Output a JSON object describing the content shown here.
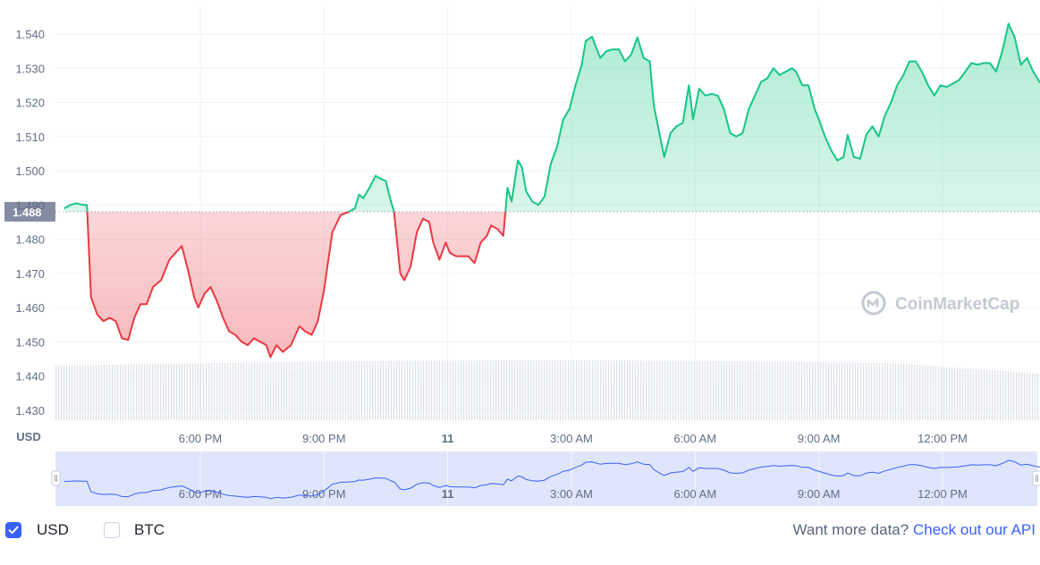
{
  "chart_data": {
    "type": "line",
    "currency_label": "USD",
    "reference_price": 1.488,
    "reference_label": "1.488",
    "y_ticks": [
      "1.540",
      "1.530",
      "1.520",
      "1.510",
      "1.500",
      "1.490",
      "1.480",
      "1.470",
      "1.460",
      "1.450",
      "1.440",
      "1.430"
    ],
    "ylim": [
      1.427,
      1.543
    ],
    "x_ticks": [
      {
        "label": "6:00 PM",
        "h": 18,
        "bold": false
      },
      {
        "label": "9:00 PM",
        "h": 21,
        "bold": false
      },
      {
        "label": "11",
        "h": 24,
        "bold": true
      },
      {
        "label": "3:00 AM",
        "h": 27,
        "bold": false
      },
      {
        "label": "6:00 AM",
        "h": 30,
        "bold": false
      },
      {
        "label": "9:00 AM",
        "h": 33,
        "bold": false
      },
      {
        "label": "12:00 PM",
        "h": 36,
        "bold": false
      }
    ],
    "x_axis": "hours since midnight of the 10th",
    "xlim": [
      14.7,
      38.55
    ],
    "grid": true,
    "above_color": "#16c784",
    "below_color": "#ea3943",
    "series": [
      {
        "points": [
          [
            14.7,
            1.489
          ],
          [
            14.85,
            1.49
          ],
          [
            15.0,
            1.4905
          ],
          [
            15.15,
            1.49
          ],
          [
            15.25,
            1.49
          ],
          [
            15.35,
            1.463
          ],
          [
            15.5,
            1.458
          ],
          [
            15.65,
            1.456
          ],
          [
            15.8,
            1.457
          ],
          [
            15.95,
            1.456
          ],
          [
            16.1,
            1.451
          ],
          [
            16.25,
            1.4505
          ],
          [
            16.4,
            1.457
          ],
          [
            16.55,
            1.461
          ],
          [
            16.7,
            1.461
          ],
          [
            16.85,
            1.466
          ],
          [
            17.05,
            1.468
          ],
          [
            17.25,
            1.474
          ],
          [
            17.4,
            1.476
          ],
          [
            17.55,
            1.478
          ],
          [
            17.7,
            1.471
          ],
          [
            17.85,
            1.463
          ],
          [
            17.95,
            1.46
          ],
          [
            18.1,
            1.464
          ],
          [
            18.25,
            1.466
          ],
          [
            18.4,
            1.462
          ],
          [
            18.55,
            1.457
          ],
          [
            18.7,
            1.453
          ],
          [
            18.85,
            1.452
          ],
          [
            19.0,
            1.45
          ],
          [
            19.15,
            1.449
          ],
          [
            19.3,
            1.451
          ],
          [
            19.45,
            1.45
          ],
          [
            19.6,
            1.449
          ],
          [
            19.7,
            1.4455
          ],
          [
            19.85,
            1.449
          ],
          [
            20.0,
            1.447
          ],
          [
            20.2,
            1.449
          ],
          [
            20.4,
            1.4545
          ],
          [
            20.55,
            1.453
          ],
          [
            20.7,
            1.452
          ],
          [
            20.85,
            1.456
          ],
          [
            21.0,
            1.465
          ],
          [
            21.2,
            1.482
          ],
          [
            21.4,
            1.487
          ],
          [
            21.6,
            1.488
          ],
          [
            21.75,
            1.489
          ],
          [
            21.85,
            1.493
          ],
          [
            21.95,
            1.492
          ],
          [
            22.1,
            1.495
          ],
          [
            22.25,
            1.4985
          ],
          [
            22.4,
            1.4975
          ],
          [
            22.5,
            1.497
          ],
          [
            22.6,
            1.492
          ],
          [
            22.7,
            1.488
          ],
          [
            22.85,
            1.47
          ],
          [
            22.95,
            1.468
          ],
          [
            23.1,
            1.472
          ],
          [
            23.25,
            1.482
          ],
          [
            23.4,
            1.486
          ],
          [
            23.55,
            1.485
          ],
          [
            23.65,
            1.479
          ],
          [
            23.8,
            1.474
          ],
          [
            23.95,
            1.479
          ],
          [
            24.05,
            1.476
          ],
          [
            24.2,
            1.475
          ],
          [
            24.35,
            1.475
          ],
          [
            24.5,
            1.475
          ],
          [
            24.65,
            1.473
          ],
          [
            24.8,
            1.479
          ],
          [
            24.95,
            1.481
          ],
          [
            25.05,
            1.484
          ],
          [
            25.2,
            1.483
          ],
          [
            25.35,
            1.481
          ],
          [
            25.45,
            1.495
          ],
          [
            25.55,
            1.491
          ],
          [
            25.7,
            1.503
          ],
          [
            25.8,
            1.501
          ],
          [
            25.9,
            1.494
          ],
          [
            26.05,
            1.491
          ],
          [
            26.2,
            1.49
          ],
          [
            26.35,
            1.4925
          ],
          [
            26.5,
            1.502
          ],
          [
            26.65,
            1.507
          ],
          [
            26.8,
            1.515
          ],
          [
            26.95,
            1.518
          ],
          [
            27.1,
            1.525
          ],
          [
            27.25,
            1.531
          ],
          [
            27.35,
            1.538
          ],
          [
            27.5,
            1.5392
          ],
          [
            27.6,
            1.536
          ],
          [
            27.7,
            1.533
          ],
          [
            27.85,
            1.535
          ],
          [
            28.0,
            1.5355
          ],
          [
            28.15,
            1.5355
          ],
          [
            28.3,
            1.532
          ],
          [
            28.45,
            1.534
          ],
          [
            28.6,
            1.539
          ],
          [
            28.75,
            1.533
          ],
          [
            28.9,
            1.532
          ],
          [
            29.0,
            1.519
          ],
          [
            29.15,
            1.51
          ],
          [
            29.25,
            1.504
          ],
          [
            29.4,
            1.511
          ],
          [
            29.55,
            1.513
          ],
          [
            29.7,
            1.514
          ],
          [
            29.85,
            1.525
          ],
          [
            29.95,
            1.515
          ],
          [
            30.1,
            1.524
          ],
          [
            30.25,
            1.522
          ],
          [
            30.4,
            1.5225
          ],
          [
            30.55,
            1.522
          ],
          [
            30.7,
            1.518
          ],
          [
            30.85,
            1.511
          ],
          [
            31.0,
            1.51
          ],
          [
            31.15,
            1.511
          ],
          [
            31.3,
            1.518
          ],
          [
            31.45,
            1.522
          ],
          [
            31.6,
            1.526
          ],
          [
            31.75,
            1.527
          ],
          [
            31.9,
            1.53
          ],
          [
            32.05,
            1.528
          ],
          [
            32.2,
            1.529
          ],
          [
            32.35,
            1.53
          ],
          [
            32.45,
            1.529
          ],
          [
            32.6,
            1.525
          ],
          [
            32.75,
            1.525
          ],
          [
            32.9,
            1.518
          ],
          [
            33.0,
            1.515
          ],
          [
            33.15,
            1.51
          ],
          [
            33.3,
            1.506
          ],
          [
            33.45,
            1.503
          ],
          [
            33.6,
            1.504
          ],
          [
            33.7,
            1.5105
          ],
          [
            33.85,
            1.504
          ],
          [
            34.0,
            1.5035
          ],
          [
            34.15,
            1.5105
          ],
          [
            34.3,
            1.513
          ],
          [
            34.45,
            1.51
          ],
          [
            34.6,
            1.516
          ],
          [
            34.75,
            1.52
          ],
          [
            34.9,
            1.525
          ],
          [
            35.05,
            1.528
          ],
          [
            35.2,
            1.532
          ],
          [
            35.35,
            1.532
          ],
          [
            35.5,
            1.529
          ],
          [
            35.65,
            1.525
          ],
          [
            35.8,
            1.522
          ],
          [
            35.95,
            1.525
          ],
          [
            36.1,
            1.5245
          ],
          [
            36.25,
            1.5255
          ],
          [
            36.4,
            1.5265
          ],
          [
            36.55,
            1.529
          ],
          [
            36.7,
            1.5315
          ],
          [
            36.85,
            1.531
          ],
          [
            37.0,
            1.5315
          ],
          [
            37.15,
            1.5315
          ],
          [
            37.3,
            1.529
          ],
          [
            37.45,
            1.535
          ],
          [
            37.6,
            1.543
          ],
          [
            37.75,
            1.539
          ],
          [
            37.9,
            1.531
          ],
          [
            38.05,
            1.533
          ],
          [
            38.2,
            1.529
          ],
          [
            38.35,
            1.526
          ],
          [
            38.5,
            1.525
          ],
          [
            38.65,
            1.527
          ],
          [
            38.8,
            1.528
          ],
          [
            38.95,
            1.53
          ],
          [
            39.1,
            1.536
          ],
          [
            39.25,
            1.535
          ]
        ]
      }
    ],
    "watermark": "CoinMarketCap"
  },
  "navigator": {
    "x_ticks": [
      "6:00 PM",
      "9:00 PM",
      "11",
      "3:00 AM",
      "6:00 AM",
      "9:00 AM",
      "12:00 PM"
    ]
  },
  "footer": {
    "usd_label": "USD",
    "usd_checked": true,
    "btc_label": "BTC",
    "btc_checked": false,
    "more_text": "Want more data?",
    "api_link": "Check out our API"
  }
}
